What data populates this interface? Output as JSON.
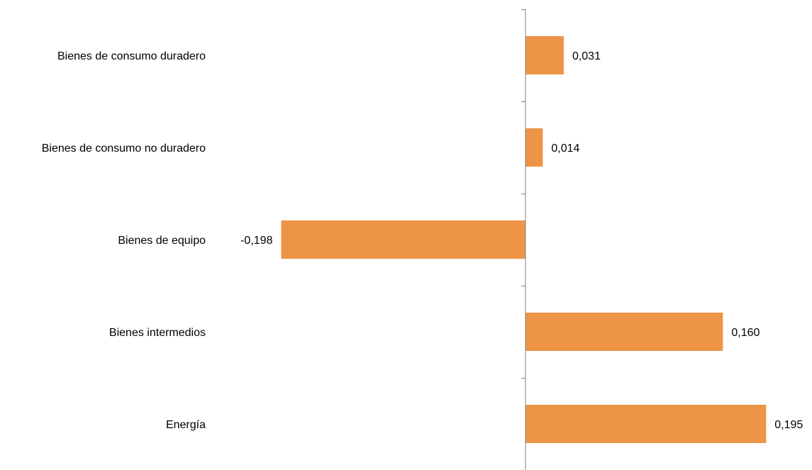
{
  "chart_data": {
    "type": "bar",
    "orientation": "horizontal",
    "categories": [
      "Bienes de consumo duradero",
      "Bienes de consumo no duradero",
      "Bienes de equipo",
      "Bienes intermedios",
      "Energía"
    ],
    "values": [
      0.031,
      0.014,
      -0.198,
      0.16,
      0.195
    ],
    "value_labels": [
      "0,031",
      "0,014",
      "-0,198",
      "0,160",
      "0,195"
    ],
    "title": "",
    "xlabel": "",
    "ylabel": "",
    "grid": false,
    "legend": "none",
    "bar_color": "#ED9446",
    "axis_color": "#808080"
  }
}
